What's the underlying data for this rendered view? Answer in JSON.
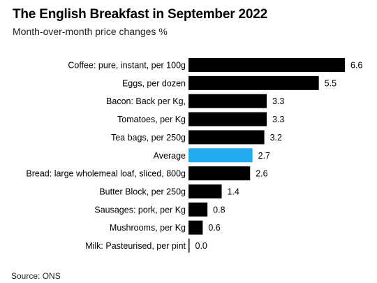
{
  "chart_data": {
    "type": "bar",
    "orientation": "horizontal",
    "title": "The English Breakfast in September 2022",
    "subtitle": "Month-over-month price changes %",
    "xlabel": "",
    "ylabel": "",
    "xlim": [
      0,
      6.6
    ],
    "grid": false,
    "legend": "none",
    "categories": [
      "Coffee: pure, instant, per 100g",
      "Eggs, per dozen",
      "Bacon: Back per Kg,",
      "Tomatoes, per Kg",
      "Tea bags, per 250g",
      "Average",
      "Bread: large wholemeal loaf, sliced, 800g",
      "Butter Block, per 250g",
      "Sausages: pork, per Kg",
      "Mushrooms, per Kg",
      "Milk: Pasteurised, per pint"
    ],
    "values": [
      6.6,
      5.5,
      3.3,
      3.3,
      3.2,
      2.7,
      2.6,
      1.4,
      0.8,
      0.6,
      0.0
    ],
    "value_labels": [
      "6.6",
      "5.5",
      "3.3",
      "3.3",
      "3.2",
      "2.7",
      "2.6",
      "1.4",
      "0.8",
      "0.6",
      "0.0"
    ],
    "highlight_category": "Average",
    "colors": {
      "bar": "#000000",
      "highlight": "#22aaf0",
      "text": "#000000"
    },
    "source": "Source: ONS"
  }
}
